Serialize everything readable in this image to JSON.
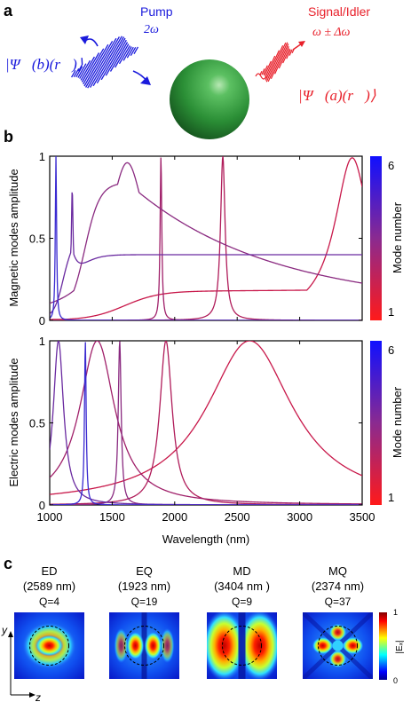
{
  "panel_a": {
    "label": "a",
    "pump_label": "Pump",
    "pump_freq": "2ω",
    "psi_b": "|Ψ⃗(b)(r⃗)⟩",
    "signal_label": "Signal/Idler",
    "signal_freq": "ω ± Δω",
    "psi_a": "|Ψ⃗(a)(r⃗)⟩",
    "pump_color": "#1a1adc",
    "signal_color": "#e8202a",
    "sphere_color": "#2f9a3a"
  },
  "panel_b": {
    "label": "b",
    "colorbar_label": "Mode number",
    "colorbar_min": "1",
    "colorbar_max": "6",
    "color_low": "#ff2020",
    "color_high": "#1010ff"
  },
  "panel_c": {
    "label": "c",
    "colorbar_label": "|Eₓ|",
    "colorbar_min": "0",
    "colorbar_max": "1",
    "axis_y": "y",
    "axis_z": "z",
    "maps": [
      {
        "name": "ED",
        "wavelength": "(2589 nm)",
        "q": "Q=4"
      },
      {
        "name": "EQ",
        "wavelength": "(1923 nm)",
        "q": "Q=19"
      },
      {
        "name": "MD",
        "wavelength": "(3404 nm )",
        "q": "Q=9"
      },
      {
        "name": "MQ",
        "wavelength": "(2374 nm)",
        "q": "Q=37"
      }
    ]
  },
  "chart_data": [
    {
      "type": "line",
      "ylabel": "Magnetic modes amplitude",
      "xlabel": "",
      "xlim": [
        1000,
        3500
      ],
      "ylim": [
        0,
        1
      ],
      "yticks": [
        "0",
        "0.5",
        "1"
      ],
      "series": [
        {
          "mode": 1,
          "color": "#c8184a",
          "peak": 3420,
          "width": 170,
          "base": 0.02,
          "shoulder": {
            "x": 1600,
            "level": 0.18,
            "w": 140
          }
        },
        {
          "mode": 2,
          "color": "#b01c5a",
          "peak": 2385,
          "width": 22,
          "base": 0.0
        },
        {
          "mode": 3,
          "color": "#a0206a",
          "peak": 1890,
          "width": 8,
          "base": 0.0
        },
        {
          "mode": 4,
          "color": "#8a2a80",
          "peak": 1620,
          "width": 190,
          "base": 0.08,
          "shoulder": {
            "x": 1280,
            "level": 0.87,
            "w": 60
          }
        },
        {
          "mode": 5,
          "color": "#6a2aa0",
          "peak": 1180,
          "width": 8,
          "base": 0.4,
          "shoulder": {
            "x": 1100,
            "level": 0.42,
            "w": 30
          }
        },
        {
          "mode": 6,
          "color": "#3a2ad0",
          "peak": 1050,
          "width": 6,
          "base": 0.0
        }
      ]
    },
    {
      "type": "line",
      "ylabel": "Electric modes amplitude",
      "xlabel": "Wavelength (nm)",
      "xlim": [
        1000,
        3500
      ],
      "ylim": [
        0,
        1
      ],
      "yticks": [
        "0",
        "0.5",
        "1"
      ],
      "xticks": [
        "1000",
        "1500",
        "2000",
        "2500",
        "3000",
        "3500"
      ],
      "series": [
        {
          "mode": 1,
          "color": "#c8184a",
          "peak": 2600,
          "width": 420,
          "base": 0.0
        },
        {
          "mode": 2,
          "color": "#b01c5a",
          "peak": 1930,
          "width": 60,
          "base": 0.0
        },
        {
          "mode": 3,
          "color": "#a0206a",
          "peak": 1380,
          "width": 170,
          "base": 0.0
        },
        {
          "mode": 4,
          "color": "#8a2a80",
          "peak": 1560,
          "width": 14,
          "base": 0.0
        },
        {
          "mode": 5,
          "color": "#6a2aa0",
          "peak": 1070,
          "width": 50,
          "base": 0.0
        },
        {
          "mode": 6,
          "color": "#3a2ad0",
          "peak": 1285,
          "width": 8,
          "base": 0.0
        }
      ]
    }
  ]
}
